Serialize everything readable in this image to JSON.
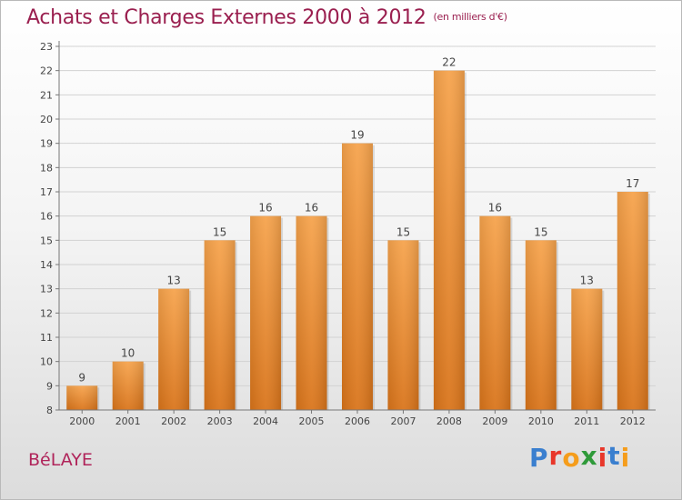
{
  "header": {
    "title": "Achats et Charges Externes 2000 à 2012",
    "subtitle": "(en milliers d'€)"
  },
  "footer": {
    "commune": "BéLAYE",
    "logo_letters": [
      "P",
      "r",
      "o",
      "x",
      "i",
      "t",
      "i"
    ],
    "logo_colors": [
      "#3a7fcf",
      "#e8372a",
      "#f59d1c",
      "#2f9a3a",
      "#e8372a",
      "#3a7fcf",
      "#f59d1c"
    ]
  },
  "colors": {
    "bar_top": "#f6a34c",
    "bar_bottom": "#d9741a",
    "title": "#9a1f4f"
  },
  "chart_data": {
    "type": "bar",
    "title": "Achats et Charges Externes 2000 à 2012",
    "subtitle": "(en milliers d'€)",
    "xlabel": "",
    "ylabel": "",
    "categories": [
      "2000",
      "2001",
      "2002",
      "2003",
      "2004",
      "2005",
      "2006",
      "2007",
      "2008",
      "2009",
      "2010",
      "2011",
      "2012"
    ],
    "values": [
      9,
      10,
      13,
      15,
      16,
      16,
      19,
      15,
      22,
      16,
      15,
      13,
      17
    ],
    "ylim": [
      8,
      23
    ],
    "yticks": [
      8,
      9,
      10,
      11,
      12,
      13,
      14,
      15,
      16,
      17,
      18,
      19,
      20,
      21,
      22,
      23
    ],
    "grid": true,
    "legend": "none"
  }
}
